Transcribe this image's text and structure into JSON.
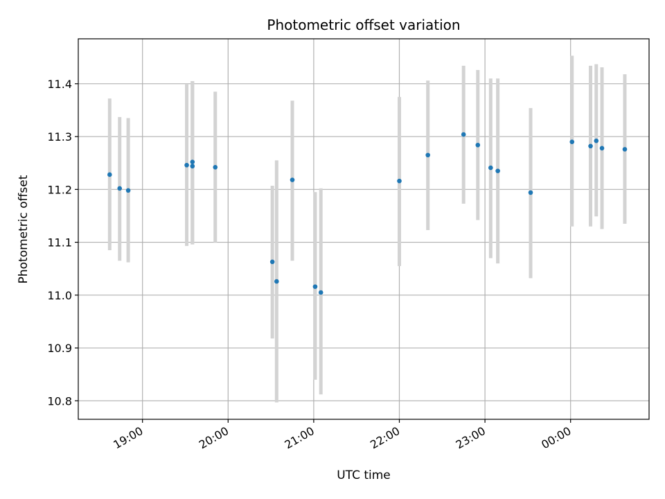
{
  "chart_data": {
    "type": "scatter",
    "title": "Photometric offset variation",
    "xlabel": "UTC time",
    "ylabel": "Photometric offset",
    "x_type": "time",
    "xlim": [
      "18:15",
      "24:55"
    ],
    "ylim": [
      10.765,
      11.485
    ],
    "grid": true,
    "x_ticks": [
      {
        "time": "19:00",
        "label": "19:00"
      },
      {
        "time": "20:00",
        "label": "20:00"
      },
      {
        "time": "21:00",
        "label": "21:00"
      },
      {
        "time": "22:00",
        "label": "22:00"
      },
      {
        "time": "23:00",
        "label": "23:00"
      },
      {
        "time": "24:00",
        "label": "00:00"
      }
    ],
    "y_ticks": [
      10.8,
      10.9,
      11.0,
      11.1,
      11.2,
      11.3,
      11.4
    ],
    "y_tick_labels": [
      "10.8",
      "10.9",
      "11.0",
      "11.1",
      "11.2",
      "11.3",
      "11.4"
    ],
    "colors": {
      "point": "#1f77b4",
      "errorbar": "#d3d3d3",
      "grid": "#b0b0b0"
    },
    "series": [
      {
        "points": [
          {
            "x": "18:37",
            "y": 11.228,
            "ylow": 11.085,
            "yhigh": 11.372
          },
          {
            "x": "18:44",
            "y": 11.202,
            "ylow": 11.065,
            "yhigh": 11.337
          },
          {
            "x": "18:50",
            "y": 11.198,
            "ylow": 11.062,
            "yhigh": 11.335
          },
          {
            "x": "19:31",
            "y": 11.246,
            "ylow": 11.093,
            "yhigh": 11.4
          },
          {
            "x": "19:35",
            "y": 11.244,
            "ylow": 11.096,
            "yhigh": 11.405
          },
          {
            "x": "19:35",
            "y": 11.252,
            "ylow": 11.096,
            "yhigh": 11.405
          },
          {
            "x": "19:51",
            "y": 11.242,
            "ylow": 11.1,
            "yhigh": 11.385
          },
          {
            "x": "20:31",
            "y": 11.063,
            "ylow": 10.918,
            "yhigh": 11.207
          },
          {
            "x": "20:34",
            "y": 11.026,
            "ylow": 10.797,
            "yhigh": 11.255
          },
          {
            "x": "20:45",
            "y": 11.218,
            "ylow": 11.065,
            "yhigh": 11.368
          },
          {
            "x": "21:01",
            "y": 11.016,
            "ylow": 10.84,
            "yhigh": 11.195
          },
          {
            "x": "21:05",
            "y": 11.005,
            "ylow": 10.812,
            "yhigh": 11.202
          },
          {
            "x": "22:00",
            "y": 11.216,
            "ylow": 11.055,
            "yhigh": 11.375
          },
          {
            "x": "22:20",
            "y": 11.265,
            "ylow": 11.123,
            "yhigh": 11.406
          },
          {
            "x": "22:45",
            "y": 11.304,
            "ylow": 11.173,
            "yhigh": 11.434
          },
          {
            "x": "22:55",
            "y": 11.284,
            "ylow": 11.142,
            "yhigh": 11.426
          },
          {
            "x": "23:04",
            "y": 11.241,
            "ylow": 11.07,
            "yhigh": 11.41
          },
          {
            "x": "23:09",
            "y": 11.235,
            "ylow": 11.06,
            "yhigh": 11.41
          },
          {
            "x": "23:32",
            "y": 11.194,
            "ylow": 11.032,
            "yhigh": 11.354
          },
          {
            "x": "24:01",
            "y": 11.29,
            "ylow": 11.13,
            "yhigh": 11.453
          },
          {
            "x": "24:14",
            "y": 11.282,
            "ylow": 11.13,
            "yhigh": 11.434
          },
          {
            "x": "24:18",
            "y": 11.292,
            "ylow": 11.149,
            "yhigh": 11.437
          },
          {
            "x": "24:22",
            "y": 11.278,
            "ylow": 11.125,
            "yhigh": 11.431
          },
          {
            "x": "24:38",
            "y": 11.276,
            "ylow": 11.135,
            "yhigh": 11.418
          }
        ]
      }
    ]
  }
}
